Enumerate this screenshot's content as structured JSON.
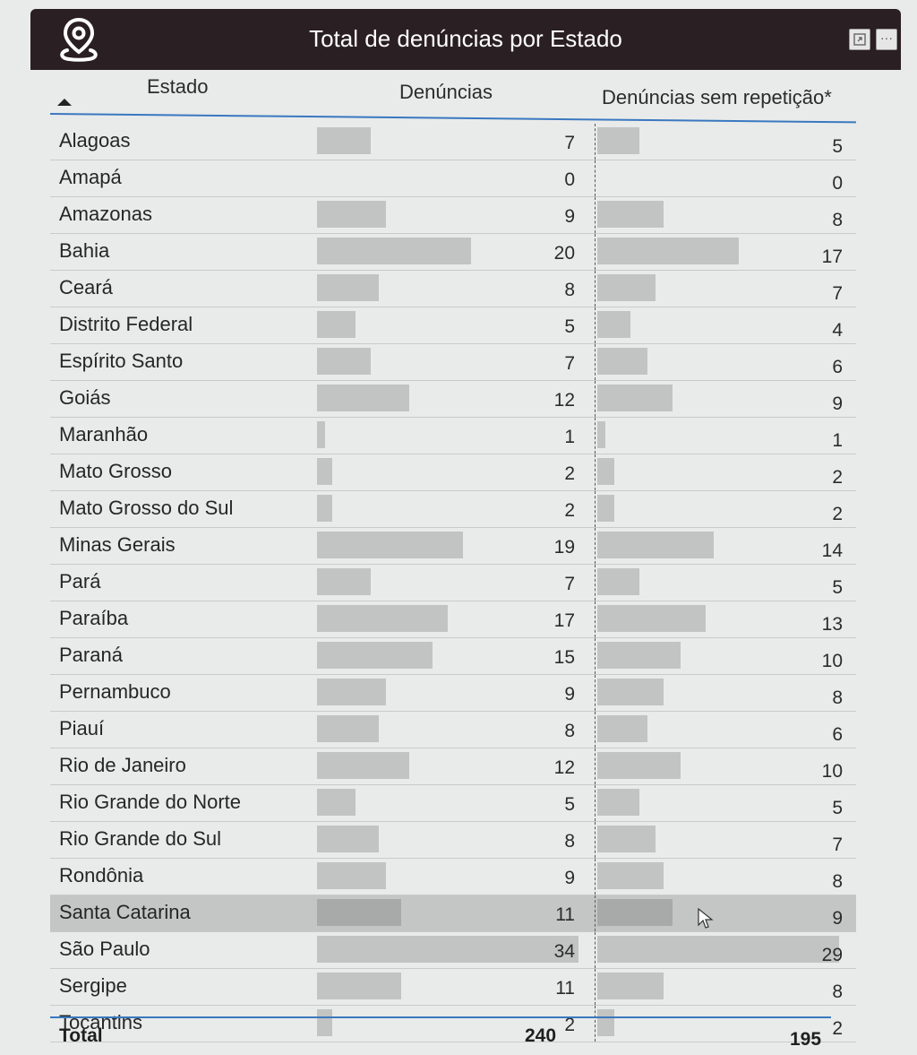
{
  "header": {
    "title": "Total de denúncias por Estado",
    "icon": "map-pin-icon",
    "expand_icon": "expand-icon",
    "more_label": "···"
  },
  "columns": {
    "estado": "Estado",
    "denuncias": "Denúncias",
    "sem_repeticao": "Denúncias sem repetição*"
  },
  "rows": [
    {
      "estado": "Alagoas",
      "denuncias": "7",
      "sem": "5"
    },
    {
      "estado": "Amapá",
      "denuncias": "0",
      "sem": "0"
    },
    {
      "estado": "Amazonas",
      "denuncias": "9",
      "sem": "8"
    },
    {
      "estado": "Bahia",
      "denuncias": "20",
      "sem": "17"
    },
    {
      "estado": "Ceará",
      "denuncias": "8",
      "sem": "7"
    },
    {
      "estado": "Distrito Federal",
      "denuncias": "5",
      "sem": "4"
    },
    {
      "estado": "Espírito Santo",
      "denuncias": "7",
      "sem": "6"
    },
    {
      "estado": "Goiás",
      "denuncias": "12",
      "sem": "9"
    },
    {
      "estado": "Maranhão",
      "denuncias": "1",
      "sem": "1"
    },
    {
      "estado": "Mato Grosso",
      "denuncias": "2",
      "sem": "2"
    },
    {
      "estado": "Mato Grosso do Sul",
      "denuncias": "2",
      "sem": "2"
    },
    {
      "estado": "Minas Gerais",
      "denuncias": "19",
      "sem": "14"
    },
    {
      "estado": "Pará",
      "denuncias": "7",
      "sem": "5"
    },
    {
      "estado": "Paraíba",
      "denuncias": "17",
      "sem": "13"
    },
    {
      "estado": "Paraná",
      "denuncias": "15",
      "sem": "10"
    },
    {
      "estado": "Pernambuco",
      "denuncias": "9",
      "sem": "8"
    },
    {
      "estado": "Piauí",
      "denuncias": "8",
      "sem": "6"
    },
    {
      "estado": "Rio de Janeiro",
      "denuncias": "12",
      "sem": "10"
    },
    {
      "estado": "Rio Grande do Norte",
      "denuncias": "5",
      "sem": "5"
    },
    {
      "estado": "Rio Grande do Sul",
      "denuncias": "8",
      "sem": "7"
    },
    {
      "estado": "Rondônia",
      "denuncias": "9",
      "sem": "8"
    },
    {
      "estado": "Santa Catarina",
      "denuncias": "11",
      "sem": "9",
      "selected": true
    },
    {
      "estado": "São Paulo",
      "denuncias": "34",
      "sem": "29"
    },
    {
      "estado": "Sergipe",
      "denuncias": "11",
      "sem": "8"
    },
    {
      "estado": "Tocantins",
      "denuncias": "2",
      "sem": "2"
    }
  ],
  "total": {
    "label": "Total",
    "denuncias": "240",
    "sem": "195"
  },
  "colors": {
    "titlebar": "#2a1f22",
    "accent_line": "#3a78c0",
    "bar": "#c2c3c3",
    "selected_row": "#c4c6c5"
  }
}
